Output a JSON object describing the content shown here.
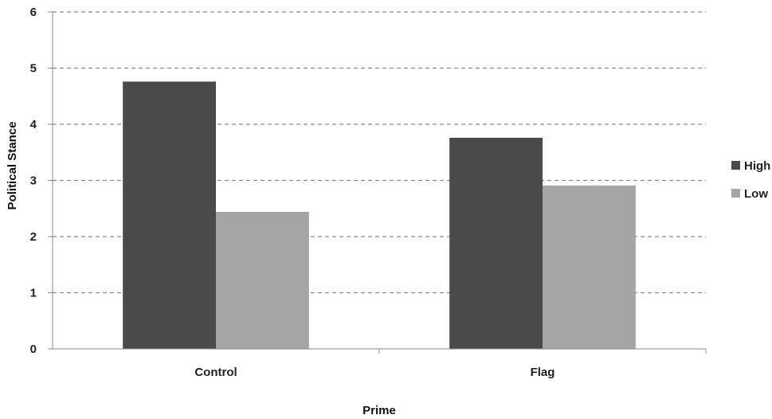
{
  "chart_data": {
    "type": "bar",
    "title": "",
    "xlabel": "Prime",
    "ylabel": "Political Stance",
    "categories": [
      "Control",
      "Flag"
    ],
    "series": [
      {
        "name": "High",
        "values": [
          4.76,
          3.76
        ],
        "color": "#4a4a4a"
      },
      {
        "name": "Low",
        "values": [
          2.44,
          2.91
        ],
        "color": "#a5a5a5"
      }
    ],
    "ylim": [
      0,
      6
    ],
    "yticks": [
      0,
      1,
      2,
      3,
      4,
      5,
      6
    ],
    "grid": true,
    "grid_style": "dashed",
    "legend_position": "right"
  }
}
